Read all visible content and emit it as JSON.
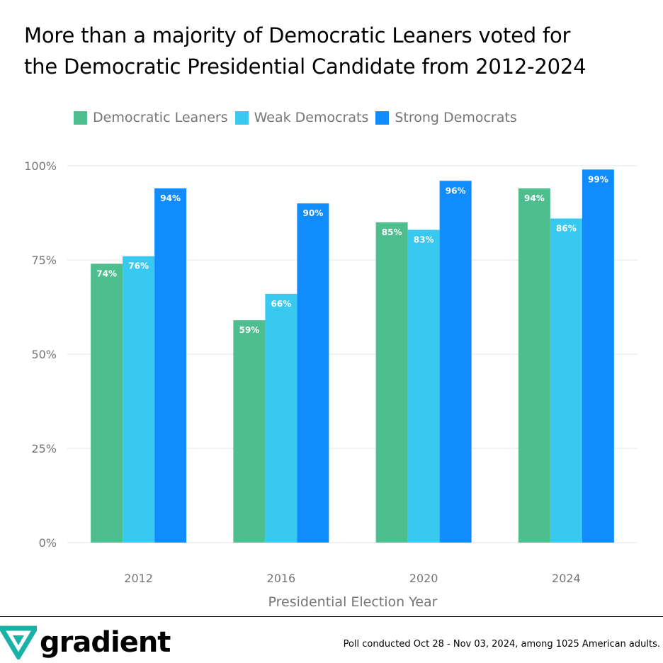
{
  "title_lines": [
    "More than a majority of Democratic Leaners voted for",
    "the Democratic Presidential Candidate from 2012-2024"
  ],
  "brand": {
    "name": "gradient",
    "logo_icon": "gradient-v-logo-icon",
    "logo_color": "#1ab2a6"
  },
  "footnote": "Poll conducted Oct 28 - Nov 03, 2024, among 1025 American adults.",
  "chart_data": {
    "type": "bar",
    "title": "More than a majority of Democratic Leaners voted for the Democratic Presidential Candidate from 2012-2024",
    "xlabel": "Presidential Election Year",
    "ylabel": "",
    "categories": [
      "2012",
      "2016",
      "2020",
      "2024"
    ],
    "ylim": [
      0,
      100
    ],
    "yticks": [
      0,
      25,
      50,
      75,
      100
    ],
    "ytick_labels": [
      "0%",
      "25%",
      "50%",
      "75%",
      "100%"
    ],
    "grid": true,
    "legend_position": "top-left",
    "series": [
      {
        "name": "Democratic Leaners",
        "color": "#4fbe8e",
        "values": [
          74,
          59,
          85,
          94
        ],
        "labels": [
          "74%",
          "59%",
          "85%",
          "94%"
        ]
      },
      {
        "name": "Weak Democrats",
        "color": "#38c8f0",
        "values": [
          76,
          66,
          83,
          86
        ],
        "labels": [
          "76%",
          "66%",
          "83%",
          "86%"
        ]
      },
      {
        "name": "Strong Democrats",
        "color": "#118cfc",
        "values": [
          94,
          90,
          96,
          99
        ],
        "labels": [
          "94%",
          "90%",
          "96%",
          "99%"
        ]
      }
    ]
  }
}
